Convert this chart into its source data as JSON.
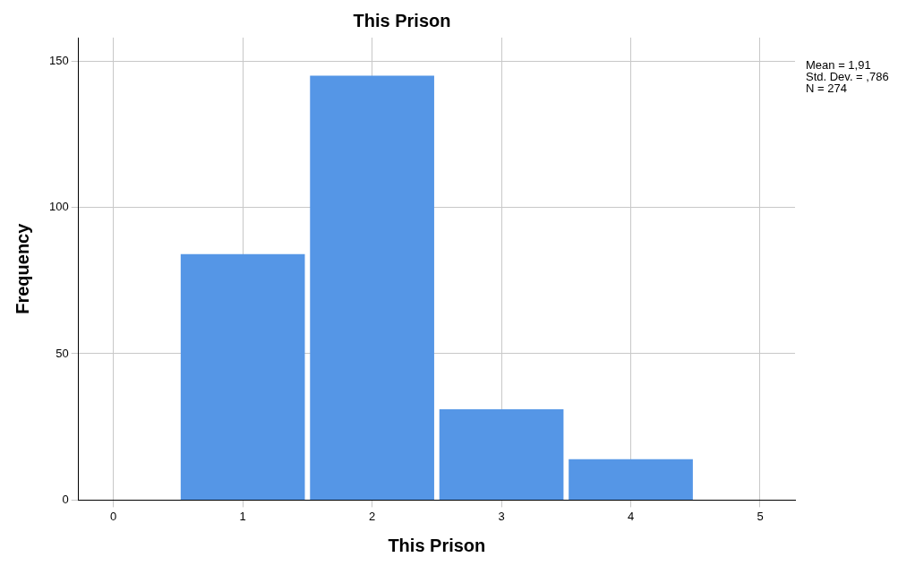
{
  "chart_data": {
    "type": "histogram",
    "title": "This Prison",
    "xlabel": "This Prison",
    "ylabel": "Frequency",
    "bins": [
      0.5,
      1.5,
      2.5,
      3.5,
      4.5
    ],
    "values": [
      84,
      145,
      31,
      14
    ],
    "color": "#5596e6",
    "xlim": [
      -0.27,
      5.27
    ],
    "xticks": [
      0,
      1,
      2,
      3,
      4,
      5
    ],
    "ylim": [
      0,
      158
    ],
    "yticks": [
      0,
      50,
      100,
      150
    ],
    "grid": true,
    "annotations": [
      "Mean = 1,91",
      "Std. Dev. = ,786",
      "N = 274"
    ]
  }
}
